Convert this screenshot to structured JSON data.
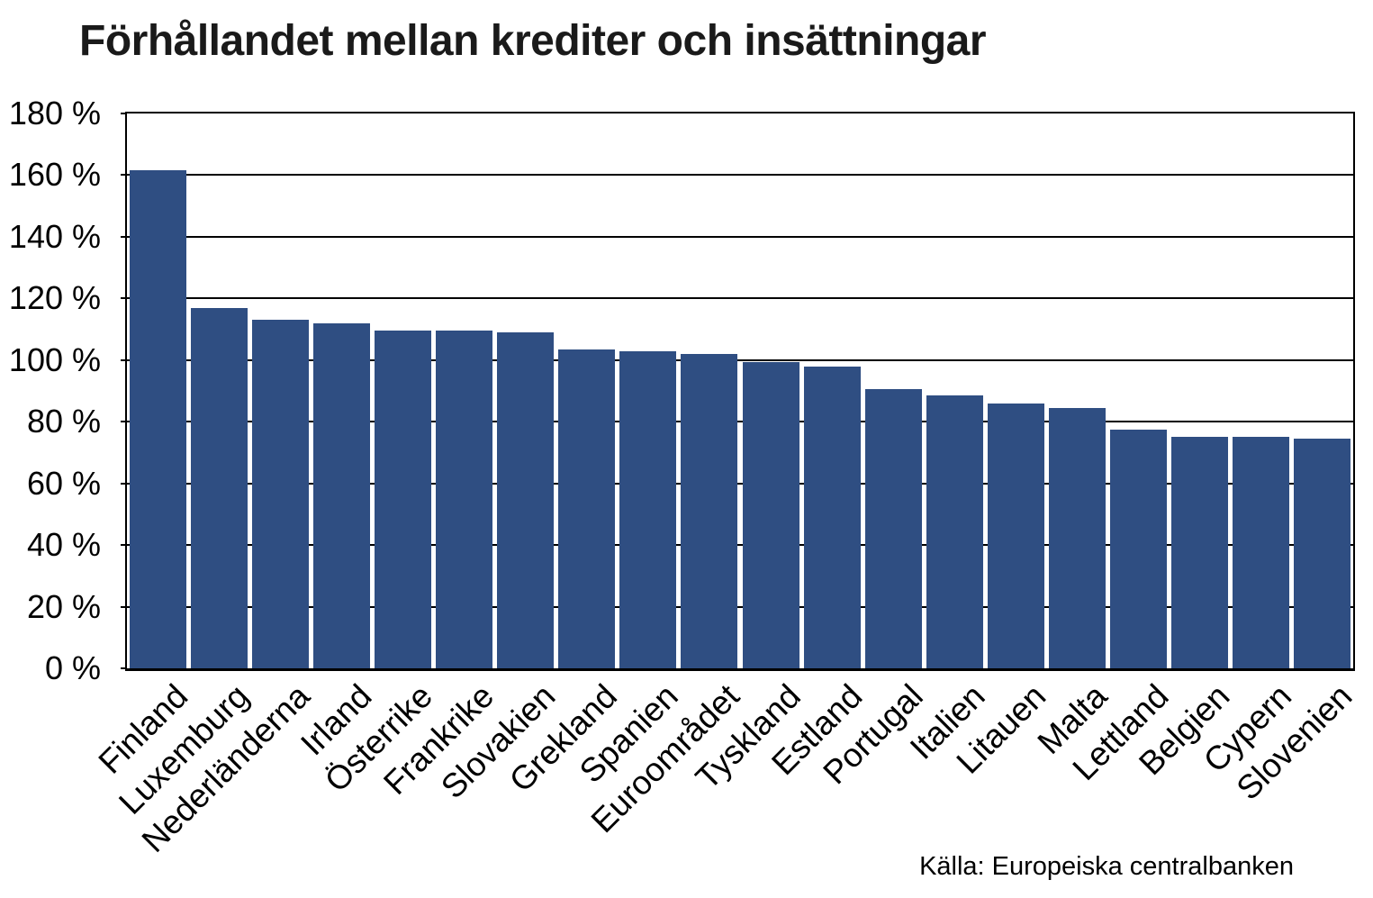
{
  "page": {
    "title": "Förhållandet mellan krediter och insättningar",
    "source": "Källa: Europeiska centralbanken"
  },
  "chart_data": {
    "type": "bar",
    "title": "Förhållandet mellan krediter och insättningar",
    "categories": [
      "Finland",
      "Luxemburg",
      "Nederländerna",
      "Irland",
      "Österrike",
      "Frankrike",
      "Slovakien",
      "Grekland",
      "Spanien",
      "Euroområdet",
      "Tyskland",
      "Estland",
      "Portugal",
      "Italien",
      "Litauen",
      "Malta",
      "Lettland",
      "Belgien",
      "Cypern",
      "Slovenien"
    ],
    "values": [
      161.5,
      117,
      113,
      112,
      109.5,
      109.5,
      109,
      103.5,
      103,
      102,
      99.5,
      98,
      90.5,
      88.5,
      86,
      84.5,
      77.5,
      75,
      75,
      74.5
    ],
    "unit": "%",
    "xlabel": "",
    "ylabel": "",
    "ylim": [
      0,
      180
    ],
    "ytick_step": 20,
    "ytick_labels": [
      "0 %",
      "20 %",
      "40 %",
      "60 %",
      "80 %",
      "100 %",
      "120 %",
      "140 %",
      "160 %",
      "180 %"
    ],
    "grid": true,
    "legend": "none",
    "bar_color": "#2F4E82",
    "axis_color": "#000000",
    "source": "Källa: Europeiska centralbanken"
  }
}
